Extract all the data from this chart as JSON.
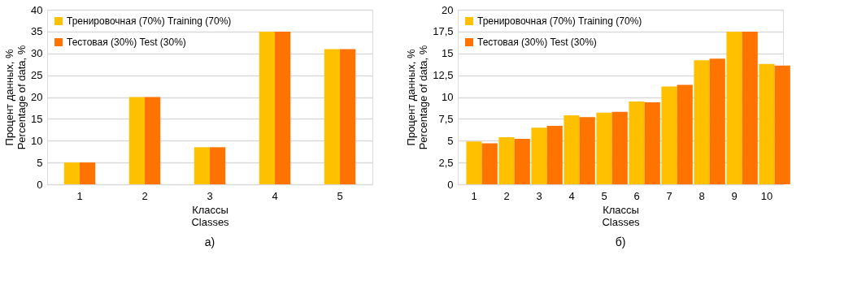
{
  "chart_data": [
    {
      "type": "bar",
      "xlabel": "Классы\nClasses",
      "ylabel": "Процент данных, %\nPercentage of data, %",
      "categories": [
        "1",
        "2",
        "3",
        "4",
        "5"
      ],
      "series": [
        {
          "name": "Тренировочная (70%)   Training (70%)",
          "color": "#ffc000",
          "values": [
            5,
            20,
            8.5,
            35,
            31
          ]
        },
        {
          "name": "Тестовая (30%)   Test (30%)",
          "color": "#ff7300",
          "values": [
            5,
            20,
            8.5,
            35,
            31
          ]
        }
      ],
      "ylim": [
        0,
        40
      ],
      "yticks": [
        0,
        5,
        10,
        15,
        20,
        25,
        30,
        35,
        40
      ],
      "grid": "y",
      "legend": "top left",
      "annotations": [
        "а)"
      ]
    },
    {
      "type": "bar",
      "xlabel": "Классы\nClasses",
      "ylabel": "Процент данных, %\nPercentage of data, %",
      "categories": [
        "1",
        "2",
        "3",
        "4",
        "5",
        "6",
        "7",
        "8",
        "9",
        "10"
      ],
      "series": [
        {
          "name": "Тренировочная (70%)   Training (70%)",
          "color": "#ffc000",
          "values": [
            4.9,
            5.4,
            6.5,
            7.9,
            8.2,
            9.5,
            11.2,
            14.2,
            17.5,
            13.8
          ]
        },
        {
          "name": "Тестовая (30%)   Test (30%)",
          "color": "#ff7300",
          "values": [
            4.7,
            5.2,
            6.7,
            7.7,
            8.3,
            9.4,
            11.4,
            14.4,
            17.5,
            13.6
          ]
        }
      ],
      "ylim": [
        0,
        20
      ],
      "yticks": [
        0,
        {
          "value": 2.5,
          "label": "2,5"
        },
        5,
        {
          "value": 7.5,
          "label": "7,5"
        },
        10,
        {
          "value": 12.5,
          "label": "12,5"
        },
        15,
        {
          "value": 17.5,
          "label": "17,5"
        },
        20
      ],
      "grid": "y",
      "legend": "top left",
      "annotations": [
        "б)"
      ]
    }
  ]
}
